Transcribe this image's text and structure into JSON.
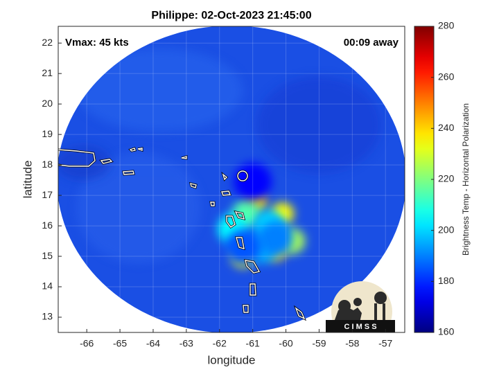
{
  "chart_data": {
    "type": "heatmap",
    "title": "Philippe: 02-Oct-2023 21:45:00",
    "annotations": [
      "Vmax: 45 kts",
      "00:09 away"
    ],
    "xlabel": "longitude",
    "ylabel": "latitude",
    "xlim": [
      -66.86,
      -56.42
    ],
    "ylim": [
      12.5,
      22.55
    ],
    "xticks": [
      -66,
      -65,
      -64,
      -63,
      -62,
      -61,
      -60,
      -59,
      -58,
      -57
    ],
    "yticks": [
      13,
      14,
      15,
      16,
      17,
      18,
      19,
      20,
      21,
      22
    ],
    "grid": true,
    "colormap": "jet",
    "clim": [
      160,
      280
    ],
    "cticks": [
      160,
      180,
      200,
      220,
      240,
      260,
      280
    ],
    "colorbar_label": "Brightness Temp - Horizontal Polarization",
    "spots": {
      "x": [
        -60.9,
        -60.1,
        -61.3,
        -60.3,
        -59.8,
        -61.2,
        -60.5,
        -61.6,
        -60.7,
        -60.3,
        -61.3,
        -61.0
      ],
      "y": [
        16.8,
        16.4,
        15.0,
        15.2,
        15.5,
        16.4,
        16.0,
        15.9,
        15.3,
        15.6,
        15.3,
        17.45
      ],
      "values": [
        240,
        235,
        235,
        240,
        225,
        215,
        200,
        205,
        195,
        190,
        185,
        175
      ]
    },
    "logo_text": "C I M S S"
  }
}
